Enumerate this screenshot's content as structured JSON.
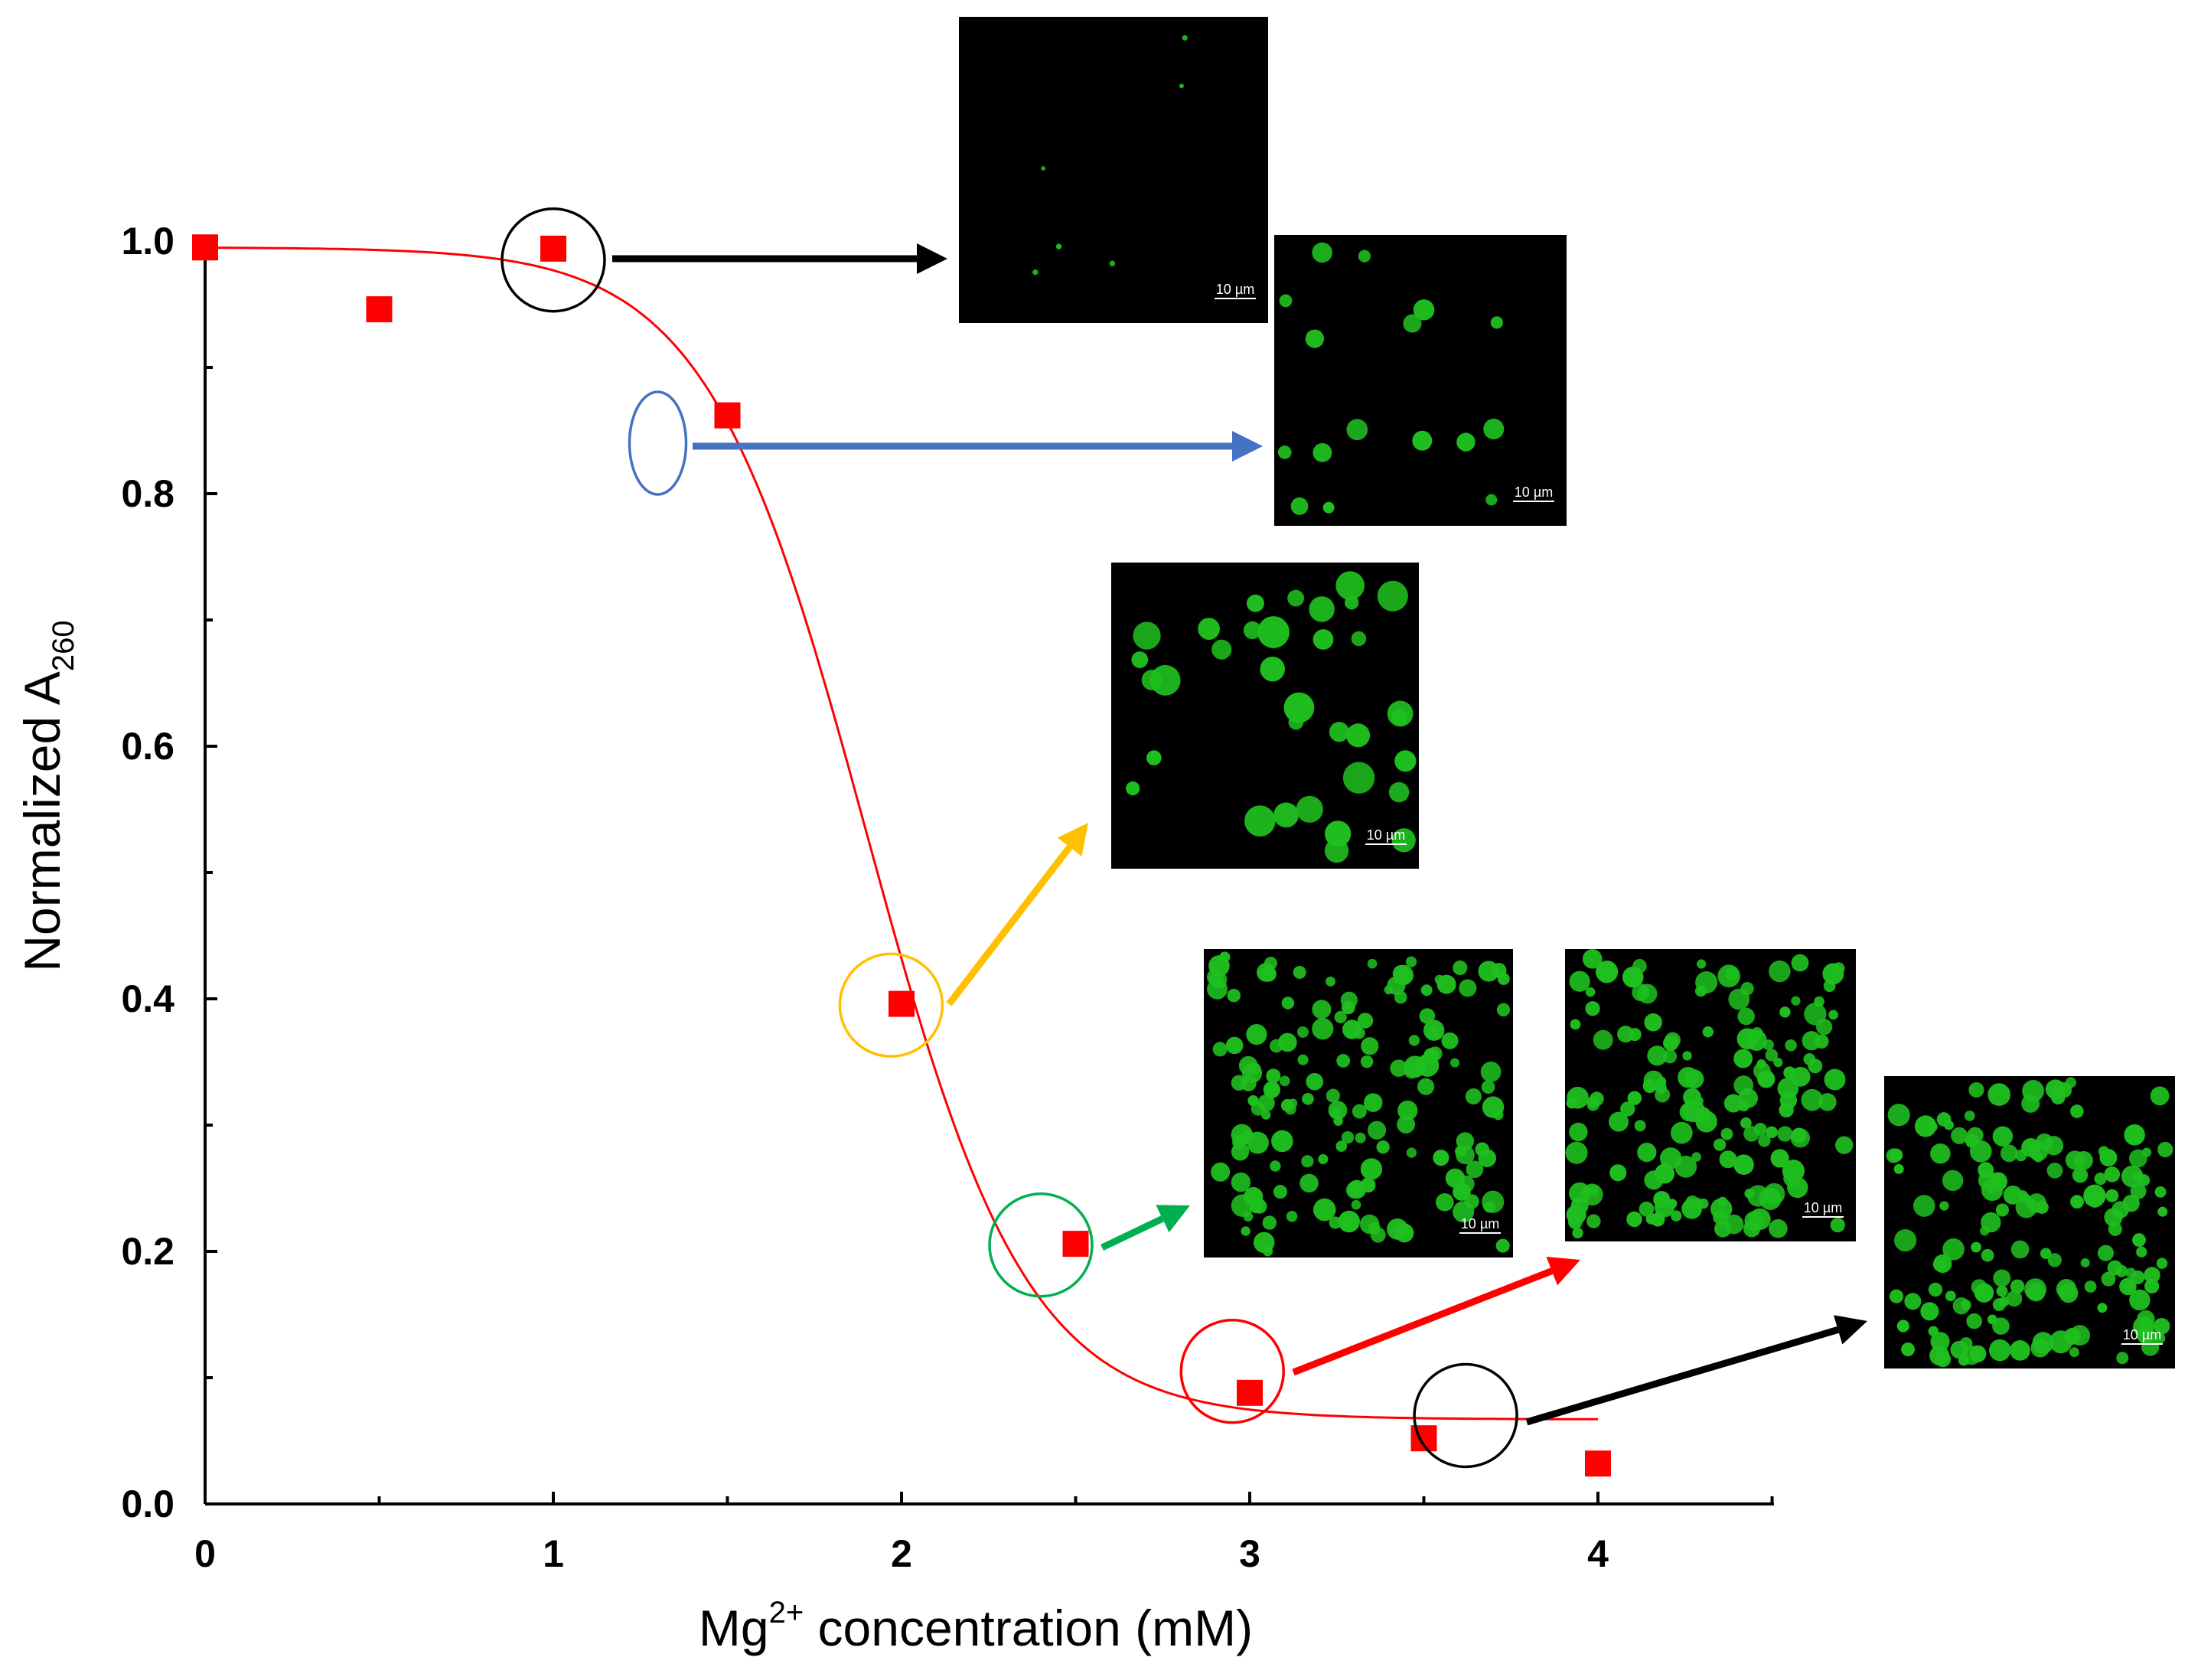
{
  "chart_data": {
    "type": "scatter",
    "title": "",
    "xlabel": {
      "main": "Mg",
      "superscript": "2+",
      "rest": " concentration (mM)"
    },
    "ylabel": {
      "main": "Normalized A",
      "subscript": "260"
    },
    "xlim": [
      0,
      4.5
    ],
    "ylim": [
      0,
      1.0
    ],
    "x_ticks": [
      "0",
      "1",
      "2",
      "3",
      "4"
    ],
    "y_ticks": [
      "0.0",
      "0.2",
      "0.4",
      "0.6",
      "0.8",
      "1.0"
    ],
    "grid": false,
    "legend": "none",
    "series": [
      {
        "kind": "points",
        "color": "#ff0000",
        "marker": "square",
        "x": [
          0,
          0.5,
          1.0,
          1.5,
          2.0,
          2.5,
          3.0,
          3.5,
          4.0
        ],
        "y": [
          0.995,
          0.946,
          0.994,
          0.862,
          0.396,
          0.206,
          0.088,
          0.052,
          0.032
        ]
      },
      {
        "kind": "fit-line",
        "color": "#ff0000",
        "model": "sigmoid",
        "top": 0.995,
        "bottom": 0.067,
        "x0": 1.9,
        "width": 0.23,
        "x_range": [
          0,
          4.0
        ]
      }
    ],
    "annotations": [
      {
        "x": 1.0,
        "y": 0.985,
        "color": "#000000",
        "shape": "circle",
        "image": 0
      },
      {
        "x": 1.3,
        "y": 0.84,
        "color": "#4472c4",
        "shape": "ellipse",
        "image": 1
      },
      {
        "x": 1.97,
        "y": 0.395,
        "color": "#ffc000",
        "shape": "circle",
        "image": 2
      },
      {
        "x": 2.4,
        "y": 0.205,
        "color": "#00b050",
        "shape": "circle",
        "image": 3
      },
      {
        "x": 2.95,
        "y": 0.105,
        "color": "#ff0000",
        "shape": "circle",
        "image": 4
      },
      {
        "x": 3.62,
        "y": 0.07,
        "color": "#000000",
        "shape": "circle",
        "image": 5
      }
    ],
    "micrographs": [
      {
        "droplet_density": "very sparse",
        "scale_bar": "10 µm"
      },
      {
        "droplet_density": "sparse",
        "scale_bar": "10 µm"
      },
      {
        "droplet_density": "moderate",
        "scale_bar": "10 µm"
      },
      {
        "droplet_density": "dense",
        "scale_bar": "10 µm"
      },
      {
        "droplet_density": "dense",
        "scale_bar": "10 µm"
      },
      {
        "droplet_density": "dense",
        "scale_bar": "10 µm"
      }
    ],
    "colors": {
      "droplet": "#1fbf1f",
      "micrograph_bg": "#000000"
    }
  }
}
